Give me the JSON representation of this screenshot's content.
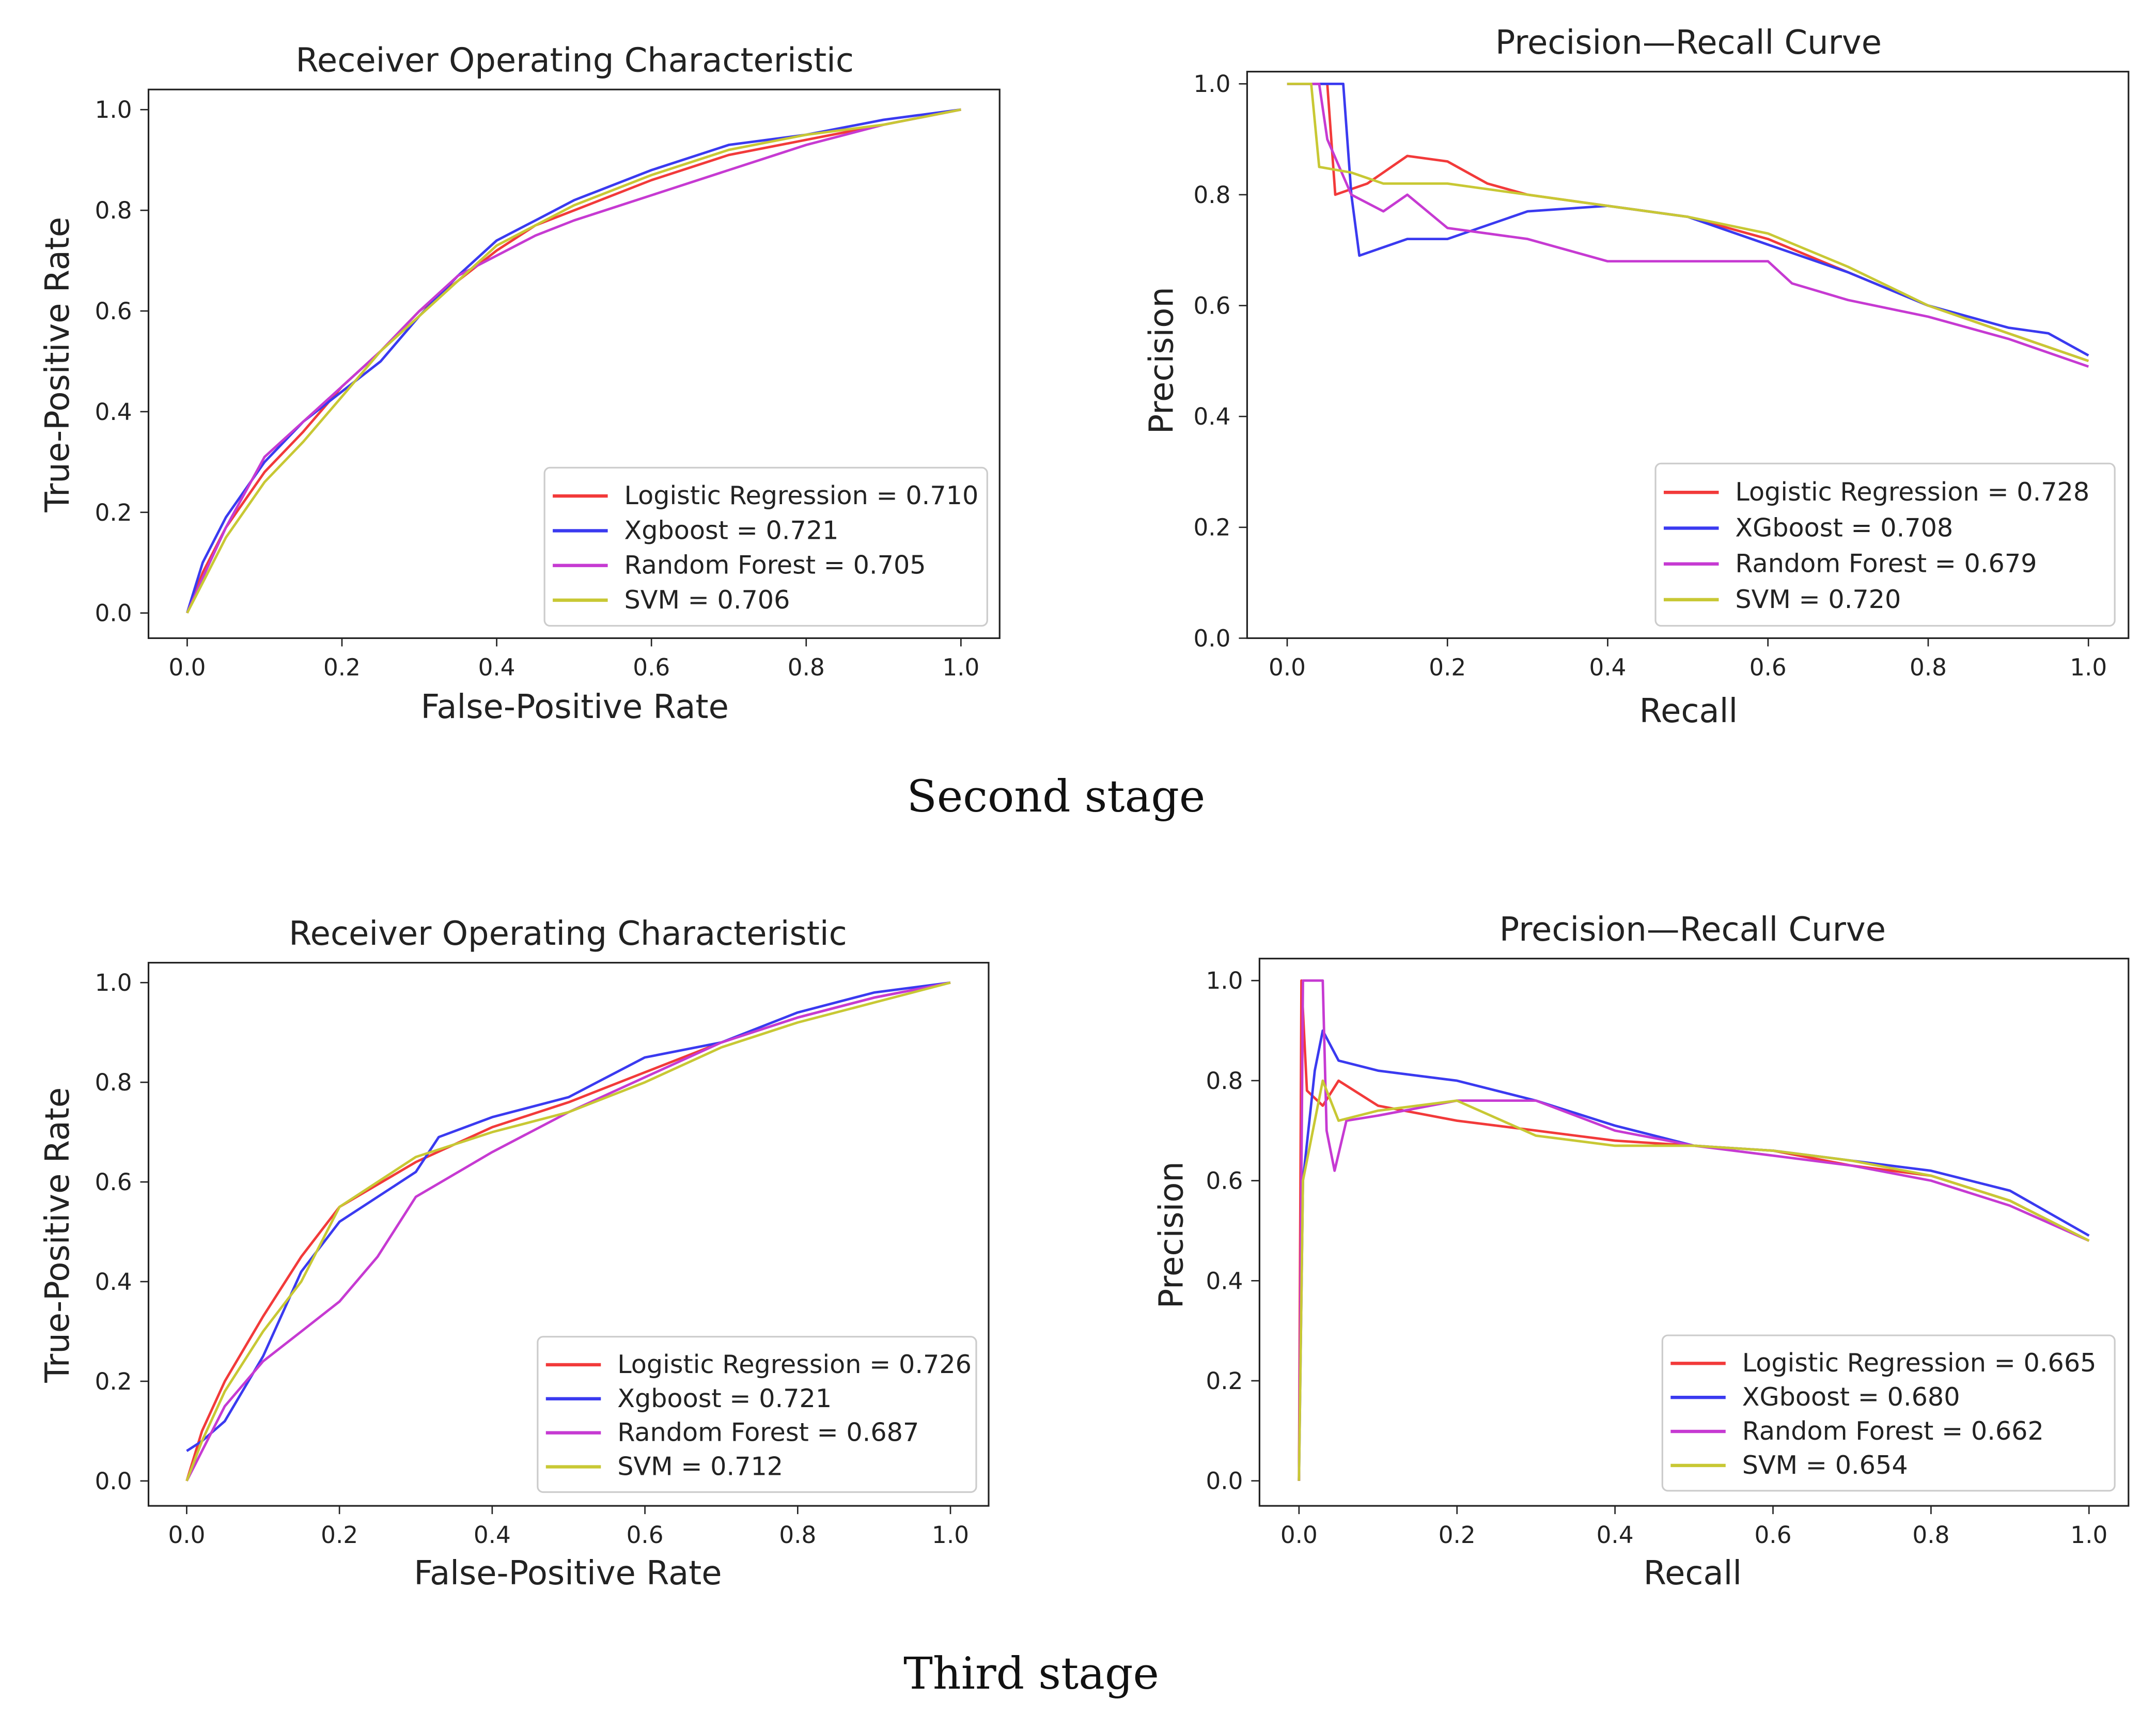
{
  "captions": {
    "second": "Second stage",
    "third": "Third stage"
  },
  "colors": {
    "Logistic Regression": "#f23a3a",
    "Xgboost": "#3a3af0",
    "XGboost": "#3a3af0",
    "Random Forest": "#c63ad2",
    "SVM": "#c8c834"
  },
  "chart_data": [
    {
      "id": "roc-second",
      "type": "line",
      "stage": "Second stage",
      "title": "Receiver Operating Characteristic",
      "xlabel": "False-Positive Rate",
      "ylabel": "True-Positive Rate",
      "xlim": [
        -0.05,
        1.05
      ],
      "ylim": [
        -0.05,
        1.04
      ],
      "xticks": [
        "0.0",
        "0.2",
        "0.4",
        "0.6",
        "0.8",
        "1.0"
      ],
      "yticks": [
        "0.0",
        "0.2",
        "0.4",
        "0.6",
        "0.8",
        "1.0"
      ],
      "legend_position": "lower-right",
      "grid": false,
      "series": [
        {
          "name": "Logistic Regression",
          "legend": "Logistic Regression = 0.710",
          "x": [
            0,
            0.02,
            0.05,
            0.1,
            0.15,
            0.2,
            0.25,
            0.3,
            0.35,
            0.4,
            0.45,
            0.5,
            0.6,
            0.7,
            0.8,
            0.9,
            1
          ],
          "y": [
            0,
            0.08,
            0.17,
            0.28,
            0.36,
            0.45,
            0.52,
            0.6,
            0.66,
            0.72,
            0.77,
            0.8,
            0.86,
            0.91,
            0.94,
            0.97,
            1
          ]
        },
        {
          "name": "Xgboost",
          "legend": "Xgboost = 0.721",
          "x": [
            0,
            0.02,
            0.05,
            0.1,
            0.15,
            0.2,
            0.25,
            0.3,
            0.35,
            0.4,
            0.45,
            0.5,
            0.6,
            0.7,
            0.8,
            0.9,
            1
          ],
          "y": [
            0,
            0.1,
            0.19,
            0.3,
            0.38,
            0.44,
            0.5,
            0.59,
            0.67,
            0.74,
            0.78,
            0.82,
            0.88,
            0.93,
            0.95,
            0.98,
            1
          ]
        },
        {
          "name": "Random Forest",
          "legend": "Random Forest = 0.705",
          "x": [
            0,
            0.02,
            0.05,
            0.1,
            0.15,
            0.2,
            0.25,
            0.3,
            0.35,
            0.4,
            0.45,
            0.5,
            0.6,
            0.7,
            0.8,
            0.9,
            1
          ],
          "y": [
            0,
            0.07,
            0.17,
            0.31,
            0.38,
            0.45,
            0.52,
            0.6,
            0.67,
            0.71,
            0.75,
            0.78,
            0.83,
            0.88,
            0.93,
            0.97,
            1
          ]
        },
        {
          "name": "SVM",
          "legend": "SVM = 0.706",
          "x": [
            0,
            0.02,
            0.05,
            0.1,
            0.15,
            0.2,
            0.25,
            0.3,
            0.35,
            0.4,
            0.45,
            0.5,
            0.6,
            0.7,
            0.8,
            0.9,
            1
          ],
          "y": [
            0,
            0.06,
            0.15,
            0.26,
            0.34,
            0.43,
            0.52,
            0.59,
            0.66,
            0.73,
            0.77,
            0.81,
            0.87,
            0.92,
            0.95,
            0.97,
            1
          ]
        }
      ]
    },
    {
      "id": "pr-second",
      "type": "line",
      "stage": "Second stage",
      "title": "Precision—Recall Curve",
      "xlabel": "Recall",
      "ylabel": "Precision",
      "xlim": [
        -0.05,
        1.05
      ],
      "ylim": [
        0,
        1.022
      ],
      "xticks": [
        "0.0",
        "0.2",
        "0.4",
        "0.6",
        "0.8",
        "1.0"
      ],
      "yticks": [
        "0.0",
        "0.2",
        "0.4",
        "0.6",
        "0.8",
        "1.0"
      ],
      "legend_position": "lower-right",
      "grid": false,
      "series": [
        {
          "name": "Logistic Regression",
          "legend": "Logistic Regression = 0.728",
          "x": [
            0,
            0.05,
            0.06,
            0.1,
            0.15,
            0.2,
            0.25,
            0.3,
            0.4,
            0.5,
            0.6,
            0.7,
            0.8,
            0.9,
            1
          ],
          "y": [
            1,
            1,
            0.8,
            0.82,
            0.87,
            0.86,
            0.82,
            0.8,
            0.78,
            0.76,
            0.72,
            0.66,
            0.6,
            0.55,
            0.5
          ]
        },
        {
          "name": "XGboost",
          "legend": "XGboost = 0.708",
          "x": [
            0,
            0.07,
            0.08,
            0.09,
            0.15,
            0.2,
            0.3,
            0.4,
            0.5,
            0.6,
            0.7,
            0.8,
            0.9,
            0.95,
            1
          ],
          "y": [
            1,
            1,
            0.8,
            0.69,
            0.72,
            0.72,
            0.77,
            0.78,
            0.76,
            0.71,
            0.66,
            0.6,
            0.56,
            0.55,
            0.51
          ]
        },
        {
          "name": "Random Forest",
          "legend": "Random Forest = 0.679",
          "x": [
            0,
            0.04,
            0.05,
            0.08,
            0.12,
            0.15,
            0.2,
            0.3,
            0.4,
            0.5,
            0.6,
            0.63,
            0.7,
            0.8,
            0.9,
            1
          ],
          "y": [
            1,
            1,
            0.9,
            0.8,
            0.77,
            0.8,
            0.74,
            0.72,
            0.68,
            0.68,
            0.68,
            0.64,
            0.61,
            0.58,
            0.54,
            0.49
          ]
        },
        {
          "name": "SVM",
          "legend": "SVM = 0.720",
          "x": [
            0,
            0.03,
            0.04,
            0.08,
            0.12,
            0.2,
            0.3,
            0.4,
            0.5,
            0.6,
            0.7,
            0.8,
            0.9,
            1
          ],
          "y": [
            1,
            1,
            0.85,
            0.84,
            0.82,
            0.82,
            0.8,
            0.78,
            0.76,
            0.73,
            0.67,
            0.6,
            0.55,
            0.5
          ]
        }
      ]
    },
    {
      "id": "roc-third",
      "type": "line",
      "stage": "Third stage",
      "title": "Receiver Operating Characteristic",
      "xlabel": "False-Positive Rate",
      "ylabel": "True-Positive Rate",
      "xlim": [
        -0.05,
        1.05
      ],
      "ylim": [
        -0.05,
        1.04
      ],
      "xticks": [
        "0.0",
        "0.2",
        "0.4",
        "0.6",
        "0.8",
        "1.0"
      ],
      "yticks": [
        "0.0",
        "0.2",
        "0.4",
        "0.6",
        "0.8",
        "1.0"
      ],
      "legend_position": "lower-right",
      "grid": false,
      "series": [
        {
          "name": "Logistic Regression",
          "legend": "Logistic Regression = 0.726",
          "x": [
            0,
            0.02,
            0.05,
            0.1,
            0.15,
            0.2,
            0.3,
            0.4,
            0.5,
            0.6,
            0.7,
            0.8,
            0.9,
            1
          ],
          "y": [
            0,
            0.1,
            0.2,
            0.33,
            0.45,
            0.55,
            0.64,
            0.71,
            0.76,
            0.82,
            0.88,
            0.93,
            0.97,
            1
          ]
        },
        {
          "name": "Xgboost",
          "legend": "Xgboost = 0.721",
          "x": [
            0,
            0.02,
            0.05,
            0.1,
            0.15,
            0.2,
            0.3,
            0.33,
            0.4,
            0.5,
            0.6,
            0.7,
            0.8,
            0.9,
            1
          ],
          "y": [
            0.06,
            0.08,
            0.12,
            0.25,
            0.42,
            0.52,
            0.62,
            0.69,
            0.73,
            0.77,
            0.85,
            0.88,
            0.94,
            0.98,
            1
          ]
        },
        {
          "name": "Random Forest",
          "legend": "Random Forest = 0.687",
          "x": [
            0,
            0.05,
            0.1,
            0.15,
            0.2,
            0.25,
            0.3,
            0.4,
            0.5,
            0.6,
            0.7,
            0.8,
            0.9,
            1
          ],
          "y": [
            0,
            0.15,
            0.24,
            0.3,
            0.36,
            0.45,
            0.57,
            0.66,
            0.74,
            0.81,
            0.88,
            0.93,
            0.97,
            1
          ]
        },
        {
          "name": "SVM",
          "legend": "SVM = 0.712",
          "x": [
            0,
            0.02,
            0.05,
            0.1,
            0.15,
            0.2,
            0.3,
            0.4,
            0.5,
            0.6,
            0.7,
            0.8,
            0.9,
            1
          ],
          "y": [
            0,
            0.08,
            0.18,
            0.3,
            0.4,
            0.55,
            0.65,
            0.7,
            0.74,
            0.8,
            0.87,
            0.92,
            0.96,
            1
          ]
        }
      ]
    },
    {
      "id": "pr-third",
      "type": "line",
      "stage": "Third stage",
      "title": "Precision—Recall Curve",
      "xlabel": "Recall",
      "ylabel": "Precision",
      "xlim": [
        -0.05,
        1.05
      ],
      "ylim": [
        -0.05,
        1.044
      ],
      "xticks": [
        "0.0",
        "0.2",
        "0.4",
        "0.6",
        "0.8",
        "1.0"
      ],
      "yticks": [
        "0.0",
        "0.2",
        "0.4",
        "0.6",
        "0.8",
        "1.0"
      ],
      "legend_position": "lower-right",
      "grid": false,
      "series": [
        {
          "name": "Logistic Regression",
          "legend": "Logistic Regression = 0.665",
          "x": [
            0,
            0.003,
            0.01,
            0.03,
            0.05,
            0.1,
            0.2,
            0.3,
            0.4,
            0.5,
            0.6,
            0.7,
            0.8,
            0.9,
            1
          ],
          "y": [
            0,
            1,
            0.78,
            0.75,
            0.8,
            0.75,
            0.72,
            0.7,
            0.68,
            0.67,
            0.66,
            0.63,
            0.61,
            0.56,
            0.48
          ]
        },
        {
          "name": "XGboost",
          "legend": "XGboost = 0.680",
          "x": [
            0,
            0.005,
            0.02,
            0.03,
            0.05,
            0.1,
            0.2,
            0.3,
            0.4,
            0.5,
            0.6,
            0.7,
            0.8,
            0.9,
            1
          ],
          "y": [
            0,
            0.6,
            0.82,
            0.9,
            0.84,
            0.82,
            0.8,
            0.76,
            0.71,
            0.67,
            0.66,
            0.64,
            0.62,
            0.58,
            0.49
          ]
        },
        {
          "name": "Random Forest",
          "legend": "Random Forest = 0.662",
          "x": [
            0,
            0.005,
            0.03,
            0.035,
            0.045,
            0.06,
            0.1,
            0.2,
            0.3,
            0.4,
            0.5,
            0.6,
            0.7,
            0.8,
            0.9,
            1
          ],
          "y": [
            0,
            1,
            1,
            0.7,
            0.62,
            0.72,
            0.73,
            0.76,
            0.76,
            0.7,
            0.67,
            0.65,
            0.63,
            0.6,
            0.55,
            0.48
          ]
        },
        {
          "name": "SVM",
          "legend": "SVM = 0.654",
          "x": [
            0,
            0.005,
            0.03,
            0.05,
            0.1,
            0.2,
            0.3,
            0.4,
            0.5,
            0.6,
            0.7,
            0.8,
            0.9,
            1
          ],
          "y": [
            0,
            0.6,
            0.8,
            0.72,
            0.74,
            0.76,
            0.69,
            0.67,
            0.67,
            0.66,
            0.64,
            0.61,
            0.56,
            0.48
          ]
        }
      ]
    }
  ]
}
